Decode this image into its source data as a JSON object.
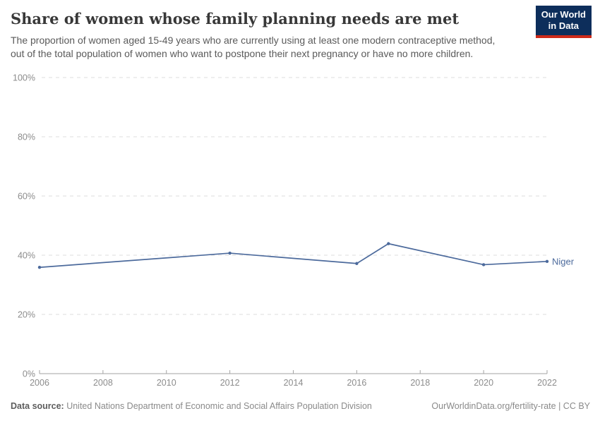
{
  "header": {
    "title": "Share of women whose family planning needs are met",
    "subtitle_lines": [
      "The proportion of women aged 15-49 years who are currently using at least one modern contraceptive method,",
      "out of the total population of women who want to postpone their next pregnancy or have no more children."
    ],
    "logo": {
      "line1": "Our World",
      "line2": "in Data",
      "bg_color": "#0D2E5B",
      "accent_color": "#CE2A19"
    }
  },
  "chart_data": {
    "type": "line",
    "title": "Share of women whose family planning needs are met",
    "x": [
      2006,
      2012,
      2016,
      2017,
      2020,
      2022
    ],
    "series": [
      {
        "name": "Niger",
        "color": "#4C6A9C",
        "values": [
          35.9,
          40.7,
          37.2,
          43.9,
          36.8,
          37.9
        ]
      }
    ],
    "unit": "%",
    "xlim": [
      2006,
      2022
    ],
    "ylim": [
      0,
      100
    ],
    "x_ticks": [
      2006,
      2008,
      2010,
      2012,
      2014,
      2016,
      2018,
      2020,
      2022
    ],
    "x_tick_labels": [
      "2006",
      "2008",
      "2010",
      "2012",
      "2014",
      "2016",
      "2018",
      "2020",
      "2022"
    ],
    "y_ticks": [
      0,
      20,
      40,
      60,
      80,
      100
    ],
    "y_tick_labels": [
      "0%",
      "20%",
      "40%",
      "60%",
      "80%",
      "100%"
    ],
    "grid": "horizontal-dashed",
    "legend_position": "line-end-label"
  },
  "footer": {
    "source_label": "Data source:",
    "source_text": " United Nations Department of Economic and Social Affairs Population Division",
    "attribution": "OurWorldinData.org/fertility-rate | CC BY"
  }
}
